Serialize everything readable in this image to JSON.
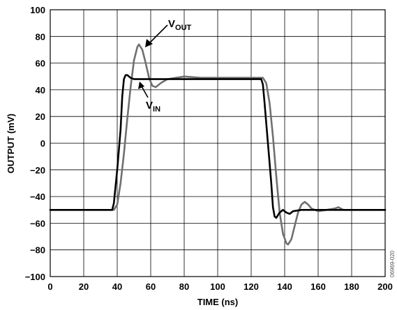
{
  "chart_data": {
    "type": "line",
    "title": "",
    "xlabel": "TIME (ns)",
    "ylabel": "OUTPUT (mV)",
    "xlim": [
      0,
      200
    ],
    "ylim": [
      -100,
      100
    ],
    "x_ticks": [
      0,
      20,
      40,
      60,
      80,
      100,
      120,
      140,
      160,
      180,
      200
    ],
    "y_ticks": [
      -100,
      -80,
      -60,
      -40,
      -20,
      0,
      20,
      40,
      60,
      80,
      100
    ],
    "grid": true,
    "series": [
      {
        "name": "VOUT",
        "color": "#707070",
        "points": [
          [
            0,
            -50
          ],
          [
            38,
            -50
          ],
          [
            40,
            -46
          ],
          [
            42,
            -30
          ],
          [
            44,
            -8
          ],
          [
            46,
            18
          ],
          [
            48,
            42
          ],
          [
            50,
            62
          ],
          [
            52,
            72
          ],
          [
            53,
            74
          ],
          [
            55,
            70
          ],
          [
            57,
            60
          ],
          [
            59,
            49
          ],
          [
            61,
            43
          ],
          [
            63,
            42
          ],
          [
            66,
            45
          ],
          [
            70,
            48
          ],
          [
            75,
            49
          ],
          [
            80,
            50
          ],
          [
            90,
            49
          ],
          [
            100,
            49
          ],
          [
            110,
            49
          ],
          [
            120,
            49
          ],
          [
            127,
            49
          ],
          [
            129,
            45
          ],
          [
            131,
            30
          ],
          [
            133,
            5
          ],
          [
            135,
            -25
          ],
          [
            137,
            -52
          ],
          [
            139,
            -68
          ],
          [
            141,
            -75
          ],
          [
            142,
            -76
          ],
          [
            144,
            -72
          ],
          [
            146,
            -62
          ],
          [
            148,
            -52
          ],
          [
            150,
            -46
          ],
          [
            152,
            -44
          ],
          [
            154,
            -46
          ],
          [
            156,
            -49
          ],
          [
            160,
            -51
          ],
          [
            165,
            -50
          ],
          [
            170,
            -49
          ],
          [
            172,
            -48
          ],
          [
            175,
            -50
          ],
          [
            185,
            -50
          ],
          [
            200,
            -50
          ]
        ]
      },
      {
        "name": "VIN",
        "color": "#000000",
        "points": [
          [
            0,
            -50
          ],
          [
            37,
            -50
          ],
          [
            38,
            -45
          ],
          [
            40,
            -20
          ],
          [
            42,
            10
          ],
          [
            43,
            35
          ],
          [
            44,
            48
          ],
          [
            45,
            51
          ],
          [
            46,
            51
          ],
          [
            48,
            49
          ],
          [
            50,
            48
          ],
          [
            60,
            48
          ],
          [
            80,
            48
          ],
          [
            100,
            48
          ],
          [
            120,
            48
          ],
          [
            126,
            48
          ],
          [
            127,
            44
          ],
          [
            128,
            30
          ],
          [
            130,
            0
          ],
          [
            132,
            -30
          ],
          [
            133,
            -48
          ],
          [
            134,
            -55
          ],
          [
            135,
            -56
          ],
          [
            137,
            -52
          ],
          [
            139,
            -50
          ],
          [
            141,
            -52
          ],
          [
            143,
            -53
          ],
          [
            145,
            -51
          ],
          [
            150,
            -50
          ],
          [
            160,
            -50
          ],
          [
            180,
            -50
          ],
          [
            200,
            -50
          ]
        ]
      }
    ],
    "annotations": [
      {
        "main": "V",
        "sub": "OUT"
      },
      {
        "main": "V",
        "sub": "IN"
      }
    ],
    "watermark": "06969-020"
  }
}
